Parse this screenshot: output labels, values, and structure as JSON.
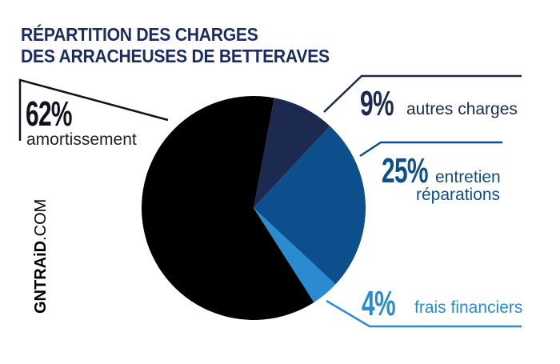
{
  "chart_data": {
    "type": "pie",
    "title": "RÉPARTITION DES CHARGES DES ARRACHEUSES DE BETTERAVES",
    "title_lines": [
      "RÉPARTITION DES CHARGES",
      "DES ARRACHEUSES DE BETTERAVES"
    ],
    "slices": [
      {
        "pct_label": "9%",
        "label": "autres charges",
        "value": 9,
        "color": "#1b2a4e"
      },
      {
        "pct_label": "25%",
        "label": "entretien réparations",
        "label_lines": [
          "entretien",
          "réparations"
        ],
        "value": 25,
        "color": "#0d4f8c"
      },
      {
        "pct_label": "4%",
        "label": "frais financiers",
        "value": 4,
        "color": "#2a8bd0"
      },
      {
        "pct_label": "62%",
        "label": "amortissement",
        "value": 62,
        "color": "#000000"
      }
    ],
    "start_angle_deg": 10.6,
    "direction": "clockwise"
  },
  "brand": {
    "bold": "GNTRAiD",
    "thin": ".COM"
  },
  "colors": {
    "title": "#1b2d5e",
    "text": "#1b2a4e",
    "mid": "#0d4f8c",
    "light": "#2a8bd0"
  }
}
